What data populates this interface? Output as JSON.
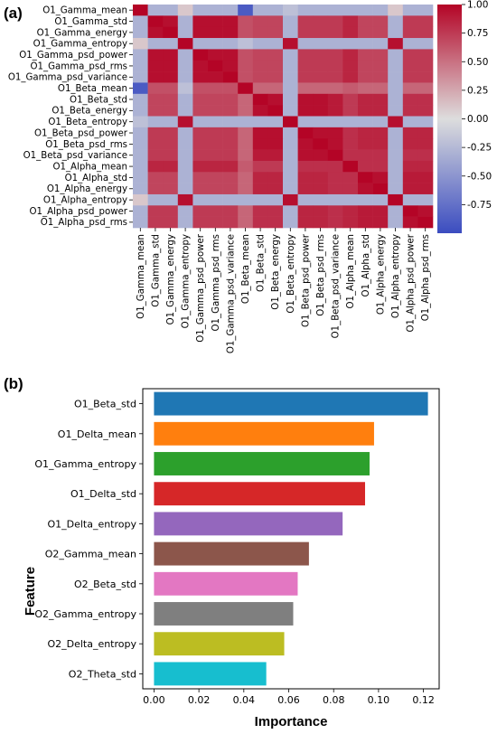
{
  "panels": [
    {
      "label": "(a)"
    },
    {
      "label": "(b)"
    }
  ],
  "colors": {
    "heat_low": "#3b4cc0",
    "heat_mid": "#dddddd",
    "heat_high": "#b40426",
    "bars": [
      "#1f77b4",
      "#ff7f0e",
      "#2ca02c",
      "#d62728",
      "#9467bd",
      "#8c564b",
      "#e377c2",
      "#7f7f7f",
      "#bcbd22",
      "#17becf"
    ]
  },
  "chart_data": [
    {
      "type": "heatmap",
      "title": "",
      "features": [
        "O1_Gamma_mean",
        "O1_Gamma_std",
        "O1_Gamma_energy",
        "O1_Gamma_entropy",
        "O1_Gamma_psd_power",
        "O1_Gamma_psd_rms",
        "O1_Gamma_psd_variance",
        "O1_Beta_mean",
        "O1_Beta_std",
        "O1_Beta_energy",
        "O1_Beta_entropy",
        "O1_Beta_psd_power",
        "O1_Beta_psd_rms",
        "O1_Beta_psd_variance",
        "O1_Alpha_mean",
        "O1_Alpha_std",
        "O1_Alpha_energy",
        "O1_Alpha_entropy",
        "O1_Alpha_psd_power",
        "O1_Alpha_psd_rms"
      ],
      "values": [
        [
          1.0,
          -0.3,
          -0.3,
          0.1,
          -0.3,
          -0.3,
          -0.3,
          -0.9,
          -0.3,
          -0.3,
          -0.2,
          -0.3,
          -0.3,
          -0.3,
          -0.3,
          -0.3,
          -0.3,
          0.1,
          -0.3,
          -0.3
        ],
        [
          -0.3,
          1.0,
          0.95,
          -0.3,
          0.95,
          0.95,
          0.95,
          0.65,
          0.7,
          0.7,
          -0.3,
          0.75,
          0.75,
          0.75,
          0.85,
          0.7,
          0.7,
          -0.3,
          0.75,
          0.75
        ],
        [
          -0.3,
          0.95,
          1.0,
          -0.3,
          0.95,
          0.95,
          0.95,
          0.65,
          0.7,
          0.7,
          -0.3,
          0.75,
          0.75,
          0.75,
          0.85,
          0.7,
          0.7,
          -0.3,
          0.75,
          0.75
        ],
        [
          0.1,
          -0.3,
          -0.3,
          1.0,
          -0.3,
          -0.3,
          -0.3,
          -0.2,
          -0.3,
          -0.3,
          0.95,
          -0.3,
          -0.3,
          -0.3,
          -0.3,
          -0.3,
          -0.3,
          0.95,
          -0.3,
          -0.3
        ],
        [
          -0.3,
          0.95,
          0.95,
          -0.3,
          1.0,
          0.95,
          0.95,
          0.65,
          0.7,
          0.7,
          -0.3,
          0.75,
          0.75,
          0.75,
          0.85,
          0.7,
          0.7,
          -0.3,
          0.75,
          0.75
        ],
        [
          -0.3,
          0.95,
          0.95,
          -0.3,
          0.95,
          1.0,
          0.95,
          0.65,
          0.7,
          0.7,
          -0.3,
          0.75,
          0.75,
          0.75,
          0.85,
          0.7,
          0.7,
          -0.3,
          0.75,
          0.75
        ],
        [
          -0.3,
          0.95,
          0.95,
          -0.3,
          0.95,
          0.95,
          1.0,
          0.65,
          0.7,
          0.7,
          -0.3,
          0.75,
          0.75,
          0.75,
          0.85,
          0.7,
          0.7,
          -0.3,
          0.75,
          0.75
        ],
        [
          -0.9,
          0.65,
          0.65,
          -0.2,
          0.65,
          0.65,
          0.65,
          1.0,
          0.55,
          0.55,
          -0.3,
          0.55,
          0.55,
          0.55,
          0.6,
          0.55,
          0.55,
          -0.3,
          0.55,
          0.55
        ],
        [
          -0.3,
          0.7,
          0.7,
          -0.3,
          0.7,
          0.7,
          0.7,
          0.55,
          1.0,
          0.95,
          -0.3,
          0.95,
          0.95,
          0.9,
          0.75,
          0.85,
          0.85,
          -0.3,
          0.8,
          0.8
        ],
        [
          -0.3,
          0.7,
          0.7,
          -0.3,
          0.7,
          0.7,
          0.7,
          0.55,
          0.95,
          1.0,
          -0.3,
          0.95,
          0.95,
          0.9,
          0.75,
          0.85,
          0.85,
          -0.3,
          0.8,
          0.8
        ],
        [
          -0.2,
          -0.3,
          -0.3,
          0.95,
          -0.3,
          -0.3,
          -0.3,
          -0.3,
          -0.3,
          -0.3,
          1.0,
          -0.3,
          -0.3,
          -0.3,
          -0.3,
          -0.3,
          -0.3,
          0.95,
          -0.3,
          -0.3
        ],
        [
          -0.3,
          0.75,
          0.75,
          -0.3,
          0.75,
          0.75,
          0.75,
          0.55,
          0.95,
          0.95,
          -0.3,
          1.0,
          0.95,
          0.95,
          0.8,
          0.85,
          0.85,
          -0.3,
          0.85,
          0.85
        ],
        [
          -0.3,
          0.75,
          0.75,
          -0.3,
          0.75,
          0.75,
          0.75,
          0.55,
          0.95,
          0.95,
          -0.3,
          0.95,
          1.0,
          0.95,
          0.8,
          0.85,
          0.85,
          -0.3,
          0.85,
          0.85
        ],
        [
          -0.3,
          0.75,
          0.75,
          -0.3,
          0.75,
          0.75,
          0.75,
          0.55,
          0.9,
          0.9,
          -0.3,
          0.95,
          0.95,
          1.0,
          0.8,
          0.8,
          0.8,
          -0.3,
          0.8,
          0.8
        ],
        [
          -0.3,
          0.85,
          0.85,
          -0.3,
          0.85,
          0.85,
          0.85,
          0.6,
          0.75,
          0.75,
          -0.3,
          0.8,
          0.8,
          0.8,
          1.0,
          0.8,
          0.8,
          -0.3,
          0.85,
          0.85
        ],
        [
          -0.3,
          0.7,
          0.7,
          -0.3,
          0.7,
          0.7,
          0.7,
          0.55,
          0.85,
          0.85,
          -0.3,
          0.85,
          0.85,
          0.8,
          0.8,
          1.0,
          0.95,
          -0.3,
          0.9,
          0.9
        ],
        [
          -0.3,
          0.7,
          0.7,
          -0.3,
          0.7,
          0.7,
          0.7,
          0.55,
          0.85,
          0.85,
          -0.3,
          0.85,
          0.85,
          0.8,
          0.8,
          0.95,
          1.0,
          -0.3,
          0.9,
          0.9
        ],
        [
          0.1,
          -0.3,
          -0.3,
          0.95,
          -0.3,
          -0.3,
          -0.3,
          -0.3,
          -0.3,
          -0.3,
          0.95,
          -0.3,
          -0.3,
          -0.3,
          -0.3,
          -0.3,
          -0.3,
          1.0,
          -0.3,
          -0.3
        ],
        [
          -0.3,
          0.75,
          0.75,
          -0.3,
          0.75,
          0.75,
          0.75,
          0.55,
          0.8,
          0.8,
          -0.3,
          0.85,
          0.85,
          0.8,
          0.85,
          0.9,
          0.9,
          -0.3,
          1.0,
          0.95
        ],
        [
          -0.3,
          0.75,
          0.75,
          -0.3,
          0.75,
          0.75,
          0.75,
          0.55,
          0.8,
          0.8,
          -0.3,
          0.85,
          0.85,
          0.8,
          0.85,
          0.9,
          0.9,
          -0.3,
          0.95,
          1.0
        ]
      ],
      "colorbar": {
        "range": [
          -1.0,
          1.0
        ],
        "ticks": [
          "1.00",
          "0.75",
          "0.50",
          "0.25",
          "0.00",
          "-0.25",
          "-0.50",
          "-0.75"
        ]
      }
    },
    {
      "type": "bar",
      "orientation": "horizontal",
      "title": "",
      "xlabel": "Importance",
      "ylabel": "Feature",
      "categories": [
        "O1_Beta_std",
        "O1_Delta_mean",
        "O1_Gamma_entropy",
        "O1_Delta_std",
        "O1_Delta_entropy",
        "O2_Gamma_mean",
        "O2_Beta_std",
        "O2_Gamma_entropy",
        "O2_Delta_entropy",
        "O2_Theta_std"
      ],
      "values": [
        0.122,
        0.098,
        0.096,
        0.094,
        0.084,
        0.069,
        0.064,
        0.062,
        0.058,
        0.05
      ],
      "xlim": [
        -0.005,
        0.127
      ],
      "xticks": [
        "0.00",
        "0.02",
        "0.04",
        "0.06",
        "0.08",
        "0.10",
        "0.12"
      ]
    }
  ]
}
